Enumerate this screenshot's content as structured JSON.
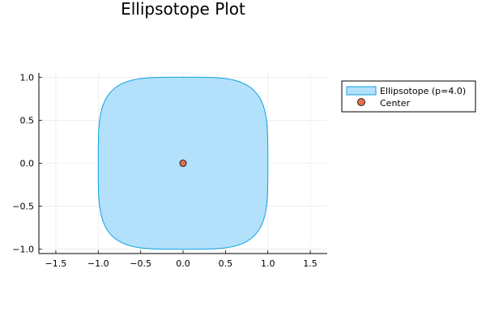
{
  "chart_data": {
    "type": "area",
    "title": "Ellipsotope Plot",
    "xlabel": "",
    "ylabel": "",
    "xlim": [
      -1.7,
      1.7
    ],
    "ylim": [
      -1.05,
      1.05
    ],
    "xticks": [
      -1.5,
      -1.0,
      -0.5,
      0.0,
      0.5,
      1.0,
      1.5
    ],
    "xtick_labels": [
      "−1.5",
      "−1.0",
      "−0.5",
      "0.0",
      "0.5",
      "1.0",
      "1.5"
    ],
    "yticks": [
      -1.0,
      -0.5,
      0.0,
      0.5,
      1.0
    ],
    "ytick_labels": [
      "−1.0",
      "−0.5",
      "0.0",
      "0.5",
      "1.0"
    ],
    "grid": true,
    "legend_position": "outer top-right",
    "series": [
      {
        "name": "Ellipsotope (p=4.0)",
        "kind": "filled-superellipse",
        "p": 4.0,
        "center": [
          0.0,
          0.0
        ],
        "radii": [
          1.0,
          1.0
        ],
        "fill_color": "#b3e0fb",
        "line_color": "#0ea2e0"
      },
      {
        "name": "Center",
        "kind": "scatter",
        "points": [
          [
            0.0,
            0.0
          ]
        ],
        "color": "#e2714f"
      }
    ]
  }
}
